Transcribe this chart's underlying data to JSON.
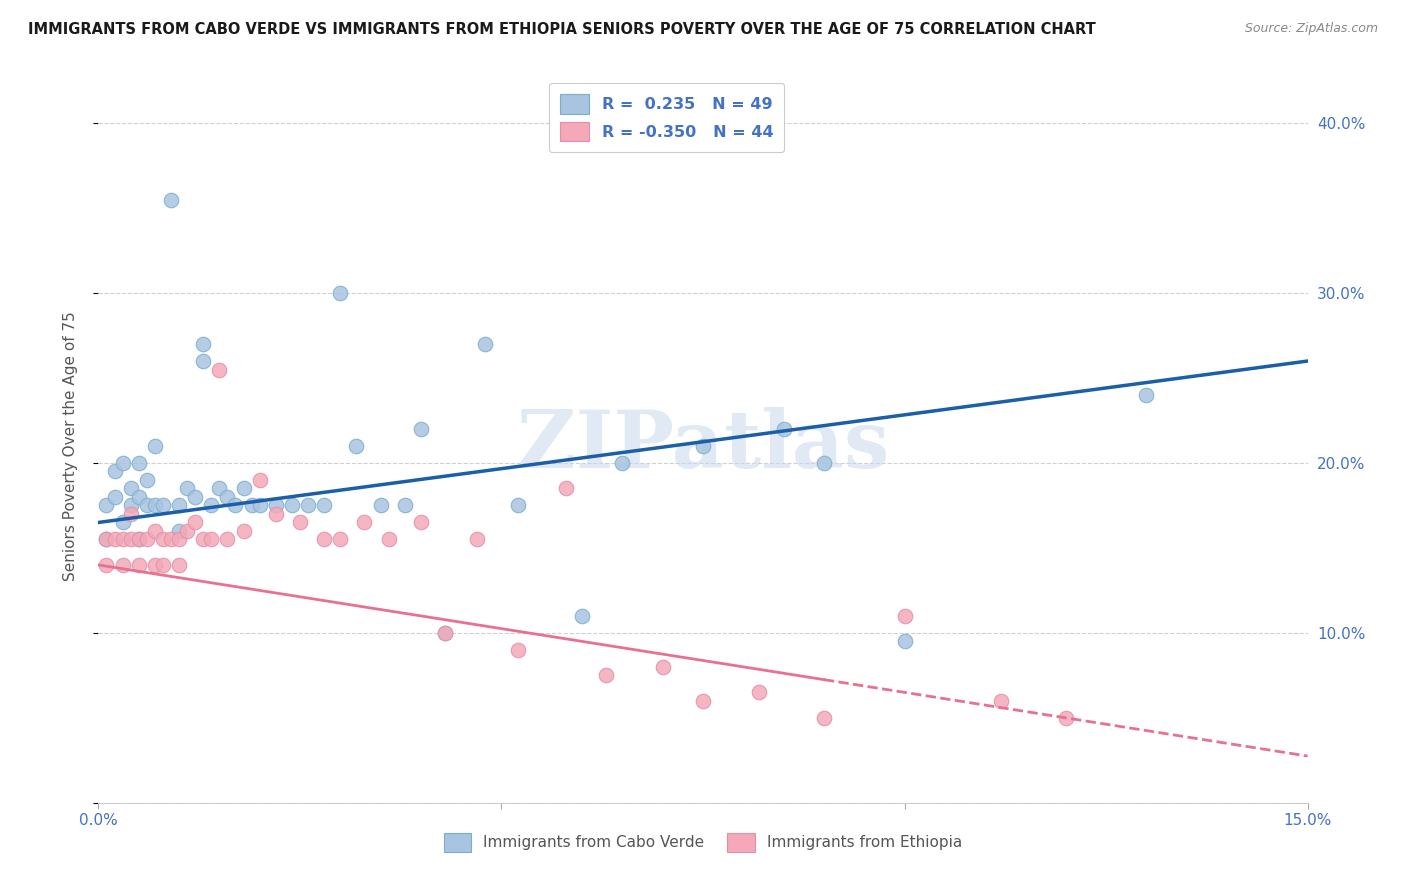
{
  "title": "IMMIGRANTS FROM CABO VERDE VS IMMIGRANTS FROM ETHIOPIA SENIORS POVERTY OVER THE AGE OF 75 CORRELATION CHART",
  "source": "Source: ZipAtlas.com",
  "ylabel": "Seniors Poverty Over the Age of 75",
  "xlim": [
    0.0,
    0.15
  ],
  "ylim": [
    0.0,
    0.42
  ],
  "y_ticks": [
    0.0,
    0.1,
    0.2,
    0.3,
    0.4
  ],
  "y_tick_labels": [
    "",
    "10.0%",
    "20.0%",
    "30.0%",
    "40.0%"
  ],
  "x_ticks": [
    0.0,
    0.05,
    0.1,
    0.15
  ],
  "x_tick_labels": [
    "0.0%",
    "",
    "",
    "15.0%"
  ],
  "legend_label1": "Immigrants from Cabo Verde",
  "legend_label2": "Immigrants from Ethiopia",
  "R1": "0.235",
  "N1": 49,
  "R2": "-0.350",
  "N2": 44,
  "cabo_verde_color": "#a8c4e0",
  "ethiopia_color": "#f4a8b8",
  "line1_color": "#1a5fa8",
  "line2_color": "#e87090",
  "watermark": "ZIPatlas",
  "cabo_verde_x": [
    0.001,
    0.001,
    0.002,
    0.002,
    0.003,
    0.003,
    0.004,
    0.004,
    0.005,
    0.005,
    0.005,
    0.006,
    0.006,
    0.007,
    0.007,
    0.008,
    0.009,
    0.01,
    0.01,
    0.011,
    0.012,
    0.013,
    0.013,
    0.014,
    0.015,
    0.016,
    0.017,
    0.018,
    0.019,
    0.02,
    0.022,
    0.024,
    0.026,
    0.028,
    0.03,
    0.032,
    0.035,
    0.038,
    0.04,
    0.043,
    0.048,
    0.052,
    0.06,
    0.065,
    0.075,
    0.085,
    0.09,
    0.1,
    0.13
  ],
  "cabo_verde_y": [
    0.175,
    0.155,
    0.195,
    0.18,
    0.165,
    0.2,
    0.185,
    0.175,
    0.18,
    0.2,
    0.155,
    0.19,
    0.175,
    0.21,
    0.175,
    0.175,
    0.355,
    0.175,
    0.16,
    0.185,
    0.18,
    0.26,
    0.27,
    0.175,
    0.185,
    0.18,
    0.175,
    0.185,
    0.175,
    0.175,
    0.175,
    0.175,
    0.175,
    0.175,
    0.3,
    0.21,
    0.175,
    0.175,
    0.22,
    0.1,
    0.27,
    0.175,
    0.11,
    0.2,
    0.21,
    0.22,
    0.2,
    0.095,
    0.24
  ],
  "ethiopia_x": [
    0.001,
    0.001,
    0.002,
    0.003,
    0.003,
    0.004,
    0.004,
    0.005,
    0.005,
    0.006,
    0.007,
    0.007,
    0.008,
    0.008,
    0.009,
    0.01,
    0.01,
    0.011,
    0.012,
    0.013,
    0.014,
    0.015,
    0.016,
    0.018,
    0.02,
    0.022,
    0.025,
    0.028,
    0.03,
    0.033,
    0.036,
    0.04,
    0.043,
    0.047,
    0.052,
    0.058,
    0.063,
    0.07,
    0.075,
    0.082,
    0.09,
    0.1,
    0.112,
    0.12
  ],
  "ethiopia_y": [
    0.14,
    0.155,
    0.155,
    0.155,
    0.14,
    0.17,
    0.155,
    0.155,
    0.14,
    0.155,
    0.14,
    0.16,
    0.155,
    0.14,
    0.155,
    0.14,
    0.155,
    0.16,
    0.165,
    0.155,
    0.155,
    0.255,
    0.155,
    0.16,
    0.19,
    0.17,
    0.165,
    0.155,
    0.155,
    0.165,
    0.155,
    0.165,
    0.1,
    0.155,
    0.09,
    0.185,
    0.075,
    0.08,
    0.06,
    0.065,
    0.05,
    0.11,
    0.06,
    0.05
  ]
}
